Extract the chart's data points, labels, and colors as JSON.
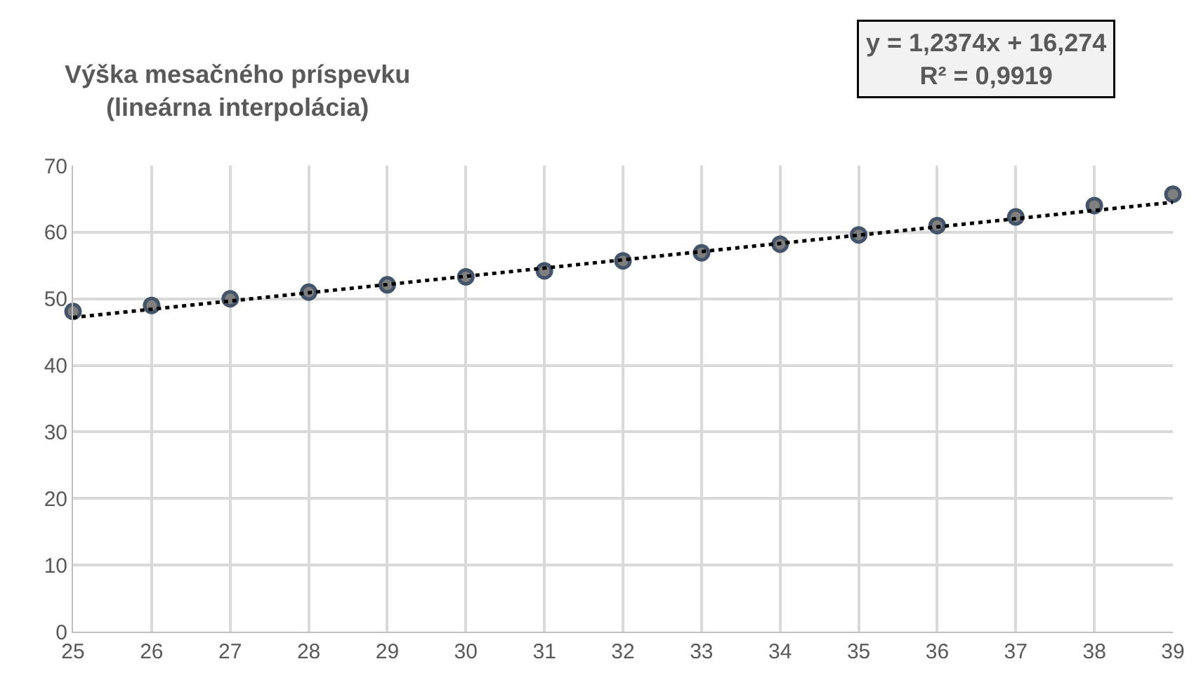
{
  "chart_data": {
    "type": "scatter",
    "title": "Výška mesačného príspevku\n(lineárna interpolácia)",
    "x": [
      25,
      26,
      27,
      28,
      29,
      30,
      31,
      32,
      33,
      34,
      35,
      36,
      37,
      38,
      39
    ],
    "series": [
      {
        "color": "#44546a",
        "marker": "circle",
        "values": [
          48.1,
          49.0,
          50.0,
          51.0,
          52.1,
          53.3,
          54.2,
          55.7,
          56.9,
          58.2,
          59.6,
          61.0,
          62.3,
          64.0,
          65.7
        ]
      },
      {
        "type": "line",
        "color": "#000000",
        "line_style": "dotted",
        "marker": "none",
        "x": [
          25,
          39
        ],
        "values": [
          47.2,
          64.5
        ]
      }
    ],
    "annotations": [
      "y = 1,2374x + 16,274",
      "R² = 0,9919"
    ],
    "xlim": [
      25,
      39
    ],
    "xticks": [
      25,
      26,
      27,
      28,
      29,
      30,
      31,
      32,
      33,
      34,
      35,
      36,
      37,
      38,
      39
    ],
    "ylim": [
      0,
      70
    ],
    "yticks": [
      0,
      10,
      20,
      30,
      40,
      50,
      60,
      70
    ],
    "grid": true
  }
}
